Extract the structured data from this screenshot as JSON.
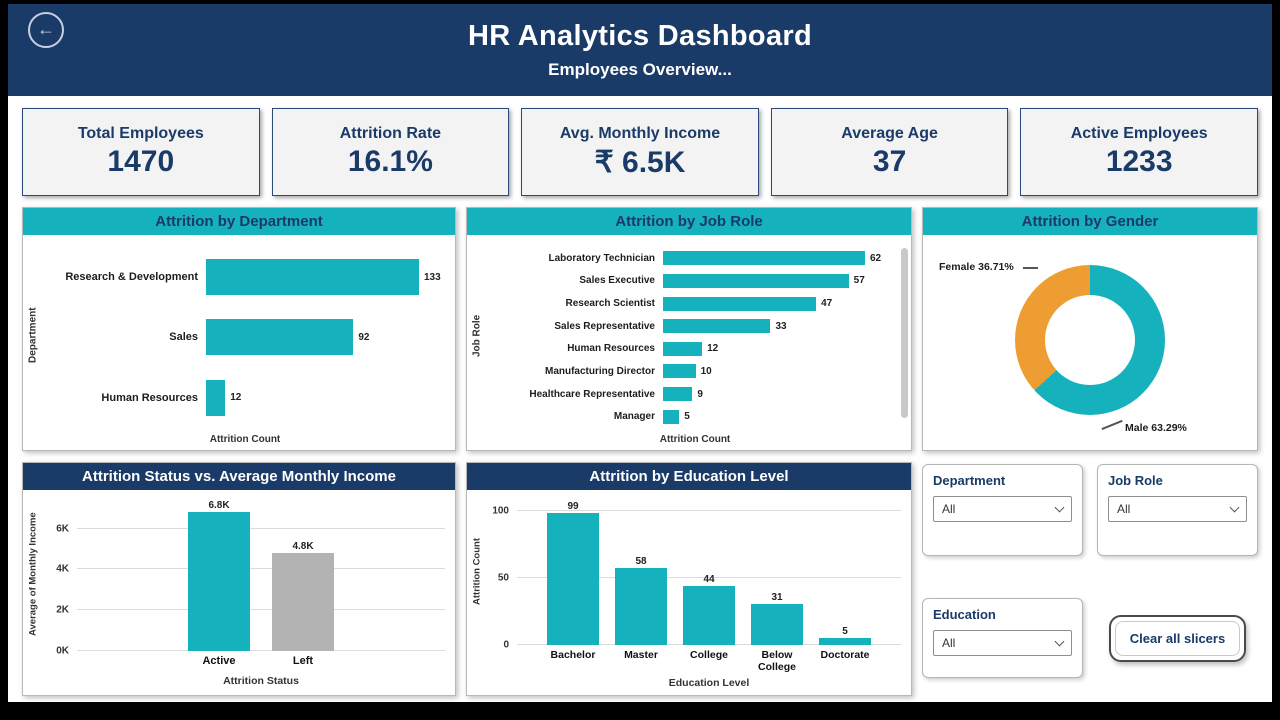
{
  "header": {
    "title": "HR Analytics Dashboard",
    "subtitle": "Employees Overview..."
  },
  "kpis": [
    {
      "label": "Total Employees",
      "value": "1470"
    },
    {
      "label": "Attrition Rate",
      "value": "16.1%"
    },
    {
      "label": "Avg. Monthly Income",
      "value": "₹ 6.5K"
    },
    {
      "label": "Average Age",
      "value": "37"
    },
    {
      "label": "Active Employees",
      "value": "1233"
    }
  ],
  "slicers": {
    "department": {
      "label": "Department",
      "value": "All"
    },
    "job_role": {
      "label": "Job Role",
      "value": "All"
    },
    "education": {
      "label": "Education",
      "value": "All"
    },
    "clear_button": "Clear all slicers"
  },
  "colors": {
    "navy": "#1a3a68",
    "teal": "#15b2bd",
    "orange": "#ee9d33",
    "gray_bar": "#b3b3b3"
  },
  "chart_data": [
    {
      "id": "attrition_by_department",
      "type": "bar",
      "orientation": "horizontal",
      "title": "Attrition by Department",
      "xlabel": "Attrition Count",
      "ylabel": "Department",
      "categories": [
        "Research & Development",
        "Sales",
        "Human Resources"
      ],
      "values": [
        133,
        92,
        12
      ],
      "max": 148
    },
    {
      "id": "attrition_by_job_role",
      "type": "bar",
      "orientation": "horizontal",
      "title": "Attrition by Job Role",
      "xlabel": "Attrition Count",
      "ylabel": "Job Role",
      "categories": [
        "Laboratory Technician",
        "Sales Executive",
        "Research Scientist",
        "Sales Representative",
        "Human Resources",
        "Manufacturing Director",
        "Healthcare Representative",
        "Manager"
      ],
      "values": [
        62,
        57,
        47,
        33,
        12,
        10,
        9,
        5
      ],
      "max": 70
    },
    {
      "id": "attrition_by_gender",
      "type": "pie",
      "title": "Attrition by Gender",
      "slices": [
        {
          "label": "Male",
          "pct": 63.29,
          "color": "#15b2bd",
          "display": "Male 63.29%"
        },
        {
          "label": "Female",
          "pct": 36.71,
          "color": "#ee9d33",
          "display": "Female 36.71%"
        }
      ]
    },
    {
      "id": "status_vs_income",
      "type": "bar",
      "orientation": "vertical",
      "title": "Attrition Status vs. Average Monthly Income",
      "xlabel": "Attrition Status",
      "ylabel": "Average of Monthly Income",
      "categories": [
        "Active",
        "Left"
      ],
      "values": [
        6.8,
        4.8
      ],
      "value_labels": [
        "6.8K",
        "4.8K"
      ],
      "bar_colors": [
        "#15b2bd",
        "#b3b3b3"
      ],
      "ticks": [
        {
          "v": 0,
          "label": "0K"
        },
        {
          "v": 2,
          "label": "2K"
        },
        {
          "v": 4,
          "label": "4K"
        },
        {
          "v": 6,
          "label": "6K"
        }
      ],
      "ymax": 7.5
    },
    {
      "id": "attrition_by_education",
      "type": "bar",
      "orientation": "vertical",
      "title": "Attrition by Education Level",
      "xlabel": "Education Level",
      "ylabel": "Attrition Count",
      "categories": [
        "Bachelor",
        "Master",
        "College",
        "Below College",
        "Doctorate"
      ],
      "values": [
        99,
        58,
        44,
        31,
        5
      ],
      "ticks": [
        {
          "v": 0,
          "label": "0"
        },
        {
          "v": 50,
          "label": "50"
        },
        {
          "v": 100,
          "label": "100"
        }
      ],
      "ymax": 110
    }
  ]
}
